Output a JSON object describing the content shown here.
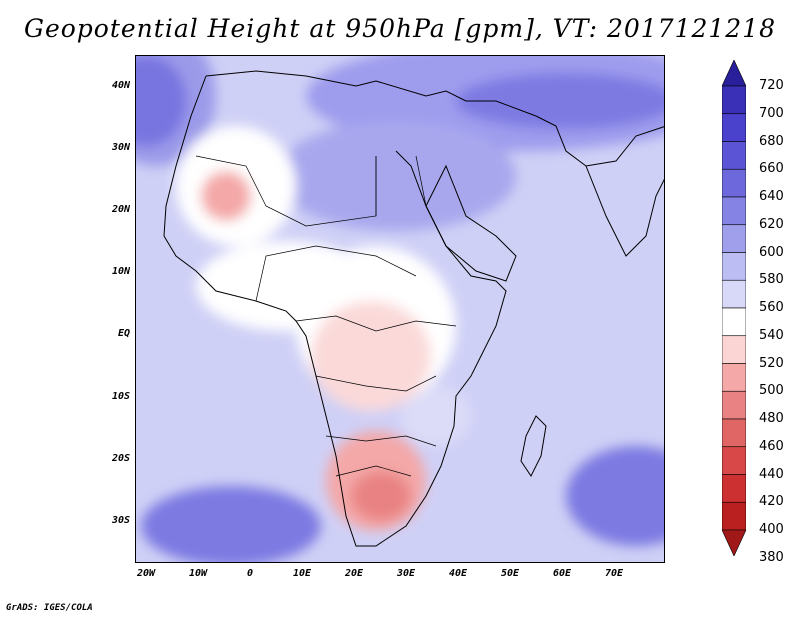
{
  "title": "Geopotential Height at 950hPa [gpm], VT: 2017121218",
  "y_ticks": [
    "40N",
    "30N",
    "20N",
    "10N",
    "EQ",
    "10S",
    "20S",
    "30S"
  ],
  "x_ticks": [
    "20W",
    "10W",
    "0",
    "10E",
    "20E",
    "30E",
    "40E",
    "50E",
    "60E",
    "70E"
  ],
  "colorbar": {
    "levels": [
      "720",
      "700",
      "680",
      "660",
      "640",
      "620",
      "600",
      "580",
      "560",
      "540",
      "520",
      "500",
      "480",
      "460",
      "440",
      "420",
      "400",
      "380"
    ],
    "colors": [
      "#2a1f9a",
      "#3a30b8",
      "#4a42cc",
      "#5b55d6",
      "#6d69dd",
      "#8583e4",
      "#a09fec",
      "#bcbdf2",
      "#d8d9f8",
      "#ffffff",
      "#fbd4d4",
      "#f4a8a8",
      "#e98383",
      "#e06565",
      "#d84848",
      "#cc3030",
      "#bb2020",
      "#a01818"
    ]
  },
  "credit": "GrADS: IGES/COLA"
}
